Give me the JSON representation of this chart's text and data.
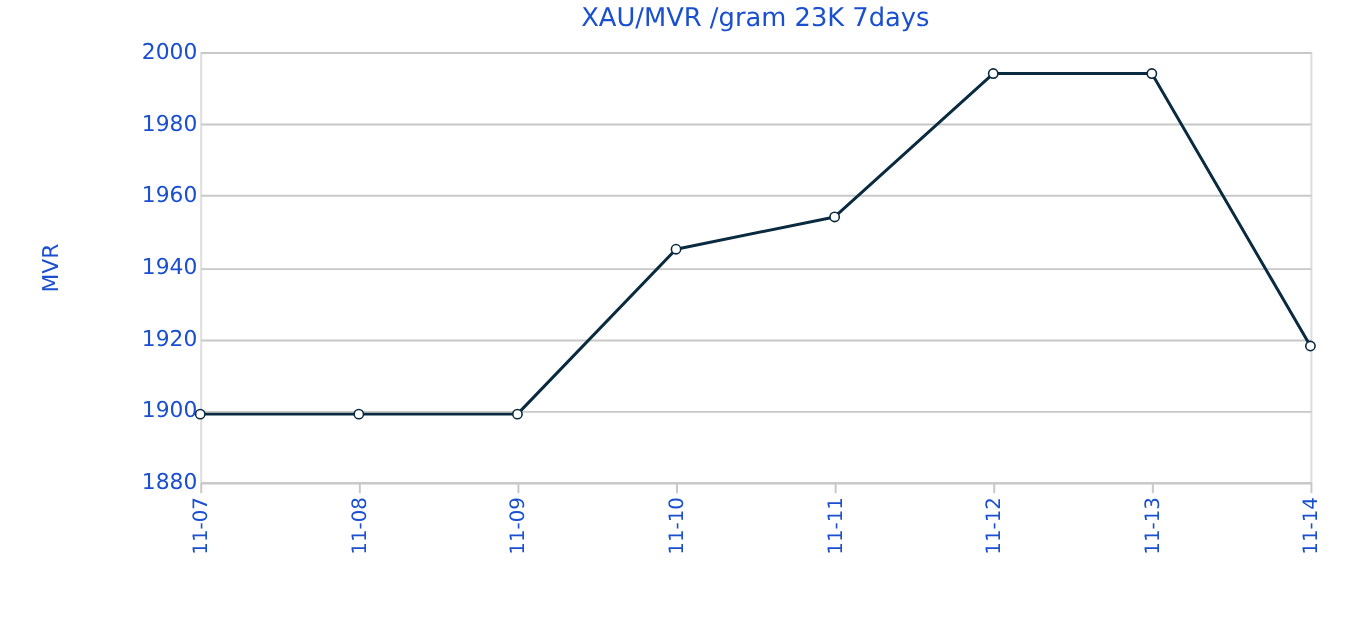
{
  "chart_data": {
    "type": "line",
    "title": "XAU/MVR /gram 23K 7days",
    "ylabel": "MVR",
    "categories": [
      "11-07",
      "11-08",
      "11-09",
      "11-10",
      "11-11",
      "11-12",
      "11-13",
      "11-14"
    ],
    "series": [
      {
        "color": "#0a2a40",
        "values": [
          1899,
          1899,
          1899,
          1945,
          1954,
          1994,
          1994,
          1918
        ]
      }
    ],
    "ylim": [
      1880,
      2000
    ],
    "yticks": [
      1880,
      1900,
      1920,
      1940,
      1960,
      1980,
      2000
    ],
    "grid": "y",
    "marker": "circle",
    "line_style": "solid"
  }
}
